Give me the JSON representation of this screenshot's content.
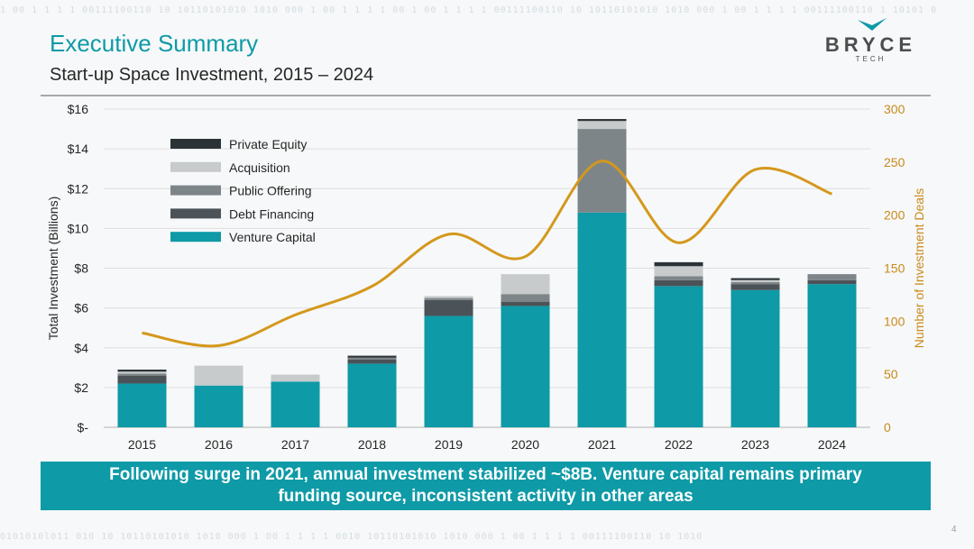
{
  "slide": {
    "title": "Executive Summary",
    "subtitle": "Start-up Space Investment, 2015 – 2024",
    "summary": "Following surge in 2021, annual investment stabilized ~$8B. Venture capital remains primary funding source, inconsistent activity in other areas",
    "page_number": "4"
  },
  "logo": {
    "name": "BRYCE",
    "sub": "TECH",
    "icon": "bryce-chevron-logo"
  },
  "decoration": {
    "binary_top": "1 00 1 1 1 1 00111100110 10 10110101010 1010 000    1 00 1 1 1 1    00   1 00 1 1 1 1 00111100110 10 10110101010 1010 000    1 00 1 1 1 1 00111100110   1 10101 0",
    "binary_bottom": "0101010l011  010 10 10110101010 1010 000    1 00 1 1 1 1 0010 10110101010 1010 000    1 00 1 1 1 1 00111100110 10 1010"
  },
  "colors": {
    "accent": "#0e9aa7",
    "venture_capital": "#0e9aa7",
    "debt_financing": "#4b5358",
    "public_offering": "#7d8588",
    "acquisition": "#c8cbcc",
    "private_equity": "#2b3337",
    "deals_line": "#d4981c",
    "right_axis_text": "#c98a1a"
  },
  "chart_data": {
    "type": "bar",
    "stacked": true,
    "categories": [
      "2015",
      "2016",
      "2017",
      "2018",
      "2019",
      "2020",
      "2021",
      "2022",
      "2023",
      "2024"
    ],
    "series": [
      {
        "name": "Venture Capital",
        "values": [
          2.2,
          2.1,
          2.3,
          3.2,
          5.6,
          6.1,
          10.8,
          7.1,
          6.9,
          7.2
        ]
      },
      {
        "name": "Debt Financing",
        "values": [
          0.4,
          0.0,
          0.0,
          0.2,
          0.8,
          0.2,
          0.0,
          0.3,
          0.3,
          0.2
        ]
      },
      {
        "name": "Public Offering",
        "values": [
          0.1,
          0.0,
          0.0,
          0.1,
          0.1,
          0.4,
          4.2,
          0.2,
          0.1,
          0.3
        ]
      },
      {
        "name": "Acquisition",
        "values": [
          0.1,
          1.0,
          0.35,
          0.0,
          0.1,
          1.0,
          0.4,
          0.5,
          0.1,
          0.0
        ]
      },
      {
        "name": "Private Equity",
        "values": [
          0.1,
          0.0,
          0.0,
          0.1,
          0.0,
          0.0,
          0.1,
          0.2,
          0.1,
          0.0
        ]
      }
    ],
    "line_series": {
      "name": "Number of Investment Deals",
      "axis": "right",
      "values": [
        89,
        77,
        106,
        133,
        182,
        161,
        251,
        174,
        243,
        220
      ]
    },
    "ylabel": "Total Investment (Billions)",
    "ylim": [
      0,
      16
    ],
    "yticks": [
      0,
      2,
      4,
      6,
      8,
      10,
      12,
      14,
      16
    ],
    "ytick_labels": [
      "$-",
      "$2",
      "$4",
      "$6",
      "$8",
      "$10",
      "$12",
      "$14",
      "$16"
    ],
    "y2label": "Number of Investment Deals",
    "y2lim": [
      0,
      300
    ],
    "y2ticks": [
      0,
      50,
      100,
      150,
      200,
      250,
      300
    ],
    "grid": true,
    "legend_position": "top-left",
    "legend_order": [
      "Private Equity",
      "Acquisition",
      "Public Offering",
      "Debt Financing",
      "Venture Capital"
    ]
  }
}
